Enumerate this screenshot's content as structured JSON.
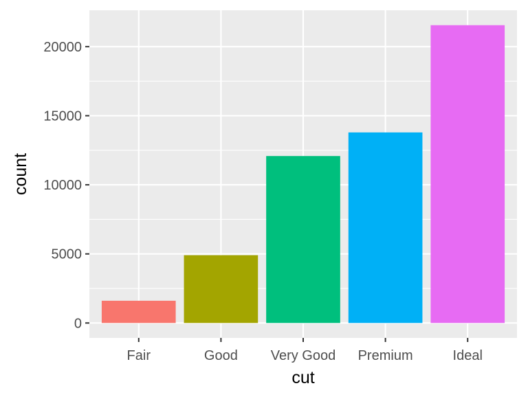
{
  "chart_data": {
    "type": "bar",
    "title": "",
    "xlabel": "cut",
    "ylabel": "count",
    "categories": [
      "Fair",
      "Good",
      "Very Good",
      "Premium",
      "Ideal"
    ],
    "values": [
      1610,
      4906,
      12082,
      13791,
      21551
    ],
    "colors": [
      "#F8766D",
      "#A3A500",
      "#00BF7D",
      "#00B0F6",
      "#E76BF3"
    ],
    "yticks": [
      0,
      5000,
      10000,
      15000,
      20000
    ],
    "ylim": [
      -1077.55,
      22628.55
    ],
    "grid": true,
    "legend": "none",
    "panel_background": "#EBEBEB",
    "gridline_color": "#FFFFFF"
  }
}
